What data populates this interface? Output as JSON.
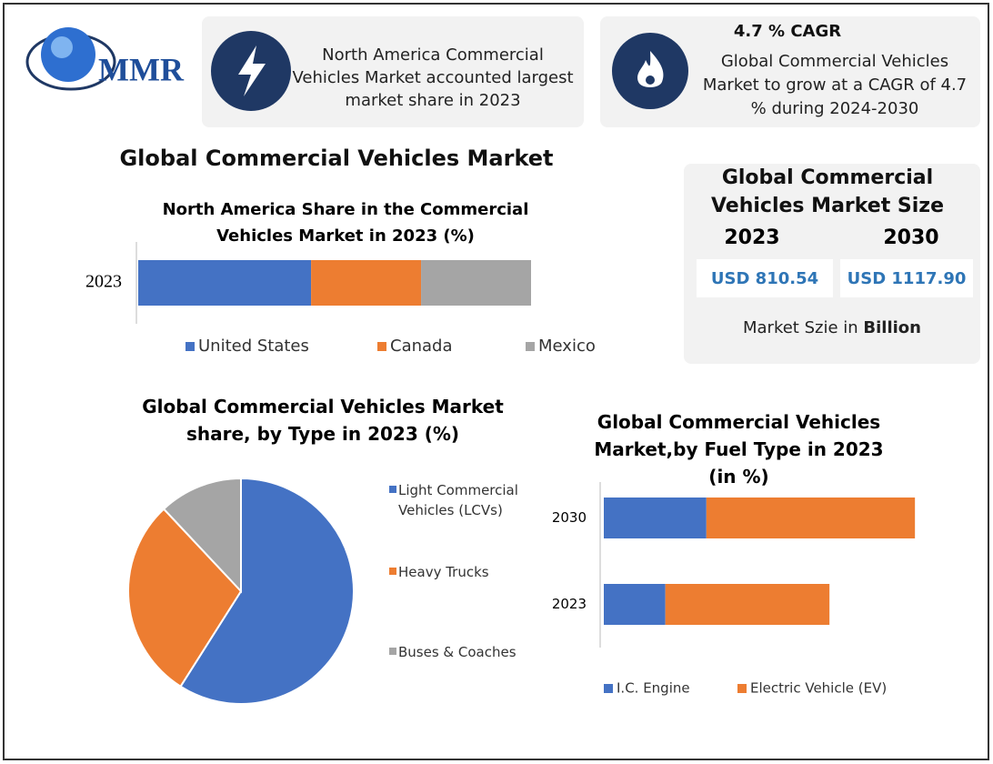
{
  "logo": "MMR",
  "highlights": [
    {
      "text": "North America Commercial Vehicles Market accounted largest market share in 2023"
    },
    {
      "heading": "4.7 % CAGR",
      "text": "Global Commercial Vehicles Market to grow at a CAGR of 4.7 % during 2024-2030"
    }
  ],
  "main_title": "Global Commercial Vehicles Market",
  "market_size": {
    "title": "Global Commercial Vehicles Market Size",
    "years": [
      "2023",
      "2030"
    ],
    "values": [
      "USD 810.54",
      "USD 1117.90"
    ],
    "note": "Market Szie in",
    "note_bold": "Billion"
  },
  "chart_data": [
    {
      "type": "bar",
      "orientation": "horizontal",
      "stacked": true,
      "title": "North America Share in the Commercial Vehicles Market in 2023 (%)",
      "categories": [
        "2023"
      ],
      "series": [
        {
          "name": "United States",
          "color": "#4472c4",
          "values": [
            44
          ]
        },
        {
          "name": "Canada",
          "color": "#ed7d31",
          "values": [
            28
          ]
        },
        {
          "name": "Mexico",
          "color": "#a5a5a5",
          "values": [
            28
          ]
        }
      ],
      "xlim": [
        0,
        100
      ]
    },
    {
      "type": "pie",
      "title": "Global Commercial Vehicles Market share, by Type in 2023  (%)",
      "categories": [
        "Light Commercial Vehicles (LCVs)",
        "Heavy Trucks",
        "Buses & Coaches"
      ],
      "values": [
        59,
        29,
        12
      ],
      "colors": [
        "#4472c4",
        "#ed7d31",
        "#a5a5a5"
      ]
    },
    {
      "type": "bar",
      "orientation": "horizontal",
      "stacked": true,
      "title": "Global Commercial Vehicles Market,by Fuel Type in 2023 (in %)",
      "categories": [
        "2030",
        "2023"
      ],
      "series": [
        {
          "name": "I.C. Engine",
          "color": "#4472c4",
          "values": [
            30,
            18
          ]
        },
        {
          "name": "Electric Vehicle (EV)",
          "color": "#ed7d31",
          "values": [
            61,
            48
          ]
        }
      ],
      "xlim": [
        0,
        100
      ]
    }
  ]
}
